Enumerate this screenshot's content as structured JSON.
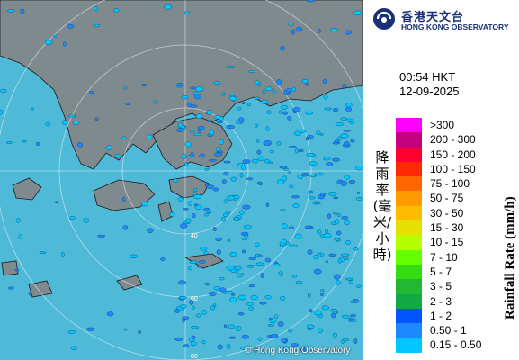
{
  "header": {
    "org_name_zh": "香港天文台",
    "org_name_en": "HONG KONG OBSERVATORY",
    "logo_icon": "observatory-logo-icon"
  },
  "timestamp": {
    "time": "00:54 HKT",
    "date": "12-09-2025"
  },
  "map": {
    "copyright": "© Hong Kong Observatory",
    "sea_color": "#4fb9d8",
    "land_color": "#7f8a8e",
    "rain_light_color": "#00c8ff",
    "rain_mid_color": "#1e88ff",
    "ring_labels": [
      "40",
      "60",
      "80"
    ]
  },
  "legend": {
    "title_zh": "降雨率(毫米/小時)",
    "title_en": "Rainfall Rate (mm/h)",
    "items": [
      {
        "label": ">300",
        "color": "#ff00ff"
      },
      {
        "label": "200 - 300",
        "color": "#c4007f"
      },
      {
        "label": "150 - 200",
        "color": "#ff0033"
      },
      {
        "label": "100 - 150",
        "color": "#ff2a00"
      },
      {
        "label": "75 - 100",
        "color": "#ff6600"
      },
      {
        "label": "50 - 75",
        "color": "#ff9900"
      },
      {
        "label": "30 - 50",
        "color": "#ffbb00"
      },
      {
        "label": "15 - 30",
        "color": "#e6e000"
      },
      {
        "label": "10 - 15",
        "color": "#b6ff00"
      },
      {
        "label": "7 - 10",
        "color": "#66ff00"
      },
      {
        "label": "5 - 7",
        "color": "#33dd11"
      },
      {
        "label": "3 - 5",
        "color": "#22b833"
      },
      {
        "label": "2 - 3",
        "color": "#11aa44"
      },
      {
        "label": "1 - 2",
        "color": "#0055ff"
      },
      {
        "label": "0.50 - 1",
        "color": "#1e88ff"
      },
      {
        "label": "0.15 - 0.50",
        "color": "#00c8ff"
      }
    ]
  }
}
